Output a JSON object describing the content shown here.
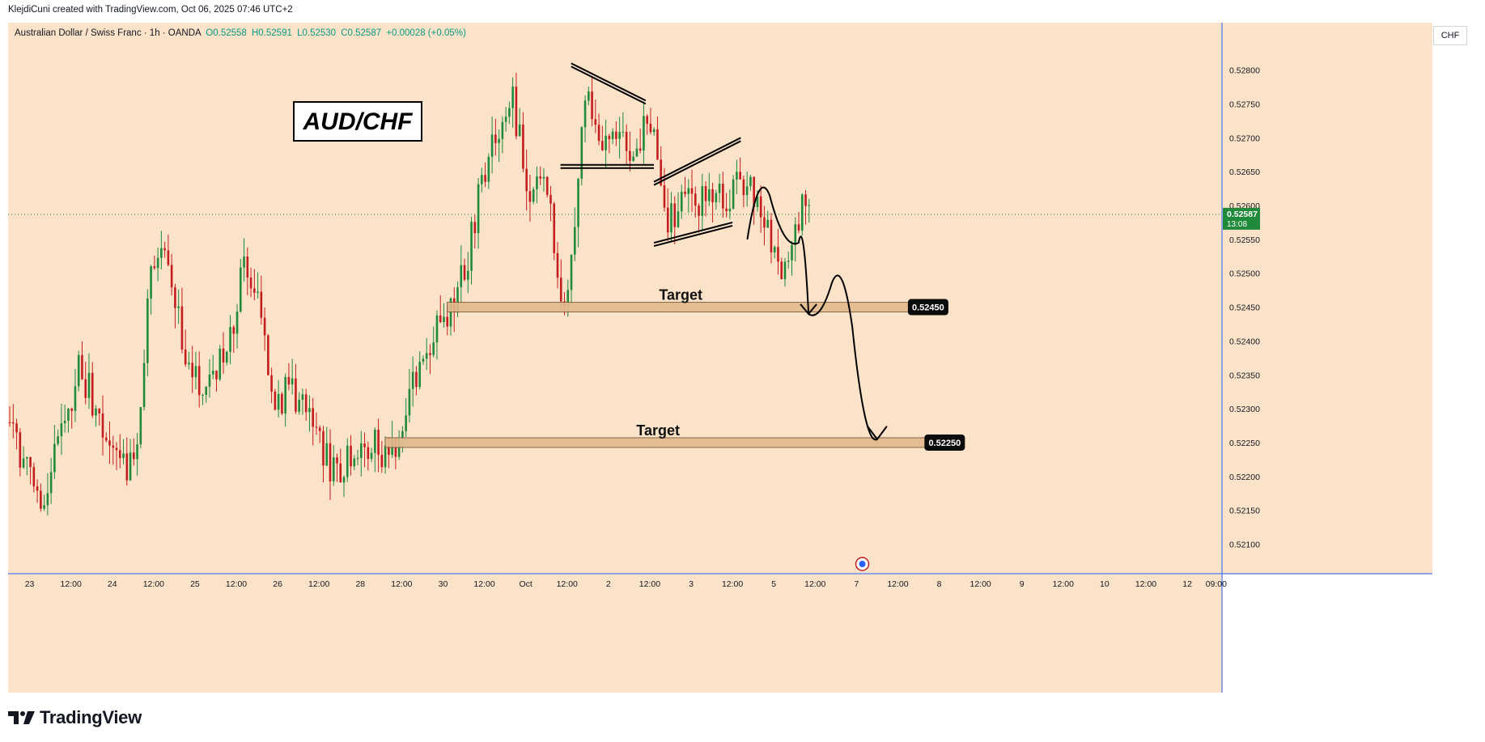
{
  "header": {
    "credit": "KlejdiCuni created with TradingView.com, Oct 06, 2025 07:46 UTC+2"
  },
  "symbol": {
    "description": "Australian Dollar / Swiss Franc · 1h · OANDA",
    "open": "O0.52558",
    "high": "H0.52591",
    "low": "L0.52530",
    "close": "C0.52587",
    "change": "+0.00028 (+0.05%)"
  },
  "currency": "CHF",
  "brand": {
    "name": "TradingView"
  },
  "colors": {
    "background": "#fbe3c9",
    "up": "#1e8a3a",
    "down": "#c51d1d",
    "axis": "#2962ff",
    "target_fill": "#e2b98e"
  },
  "chart_data": {
    "type": "candlestick",
    "title": "AUD/CHF",
    "y_range": [
      0.5206,
      0.5287
    ],
    "y_ticks": [
      "0.52100",
      "0.52150",
      "0.52200",
      "0.52250",
      "0.52300",
      "0.52350",
      "0.52400",
      "0.52450",
      "0.52500",
      "0.52550",
      "0.52600",
      "0.52650",
      "0.52700",
      "0.52750",
      "0.52800"
    ],
    "x_ticks": [
      {
        "label": "23",
        "x": 0.0
      },
      {
        "label": "12:00",
        "x": 0.5
      },
      {
        "label": "24",
        "x": 1.0
      },
      {
        "label": "12:00",
        "x": 1.5
      },
      {
        "label": "25",
        "x": 2.0
      },
      {
        "label": "12:00",
        "x": 2.5
      },
      {
        "label": "26",
        "x": 3.0
      },
      {
        "label": "12:00",
        "x": 3.5
      },
      {
        "label": "28",
        "x": 4.0
      },
      {
        "label": "12:00",
        "x": 4.5
      },
      {
        "label": "30",
        "x": 5.0
      },
      {
        "label": "12:00",
        "x": 5.5
      },
      {
        "label": "Oct",
        "x": 6.0
      },
      {
        "label": "12:00",
        "x": 6.5
      },
      {
        "label": "2",
        "x": 7.0
      },
      {
        "label": "12:00",
        "x": 7.5
      },
      {
        "label": "3",
        "x": 8.0
      },
      {
        "label": "12:00",
        "x": 8.5
      },
      {
        "label": "5",
        "x": 9.0
      },
      {
        "label": "12:00",
        "x": 9.5
      },
      {
        "label": "7",
        "x": 10.0
      },
      {
        "label": "12:00",
        "x": 10.5
      },
      {
        "label": "8",
        "x": 11.0
      },
      {
        "label": "12:00",
        "x": 11.5
      },
      {
        "label": "9",
        "x": 12.0
      },
      {
        "label": "12:00",
        "x": 12.5
      },
      {
        "label": "10",
        "x": 13.0
      },
      {
        "label": "12:00",
        "x": 13.5
      },
      {
        "label": "12",
        "x": 14.0
      },
      {
        "label": "09:00",
        "x": 14.35
      }
    ],
    "x_range": [
      -0.26,
      14.42
    ],
    "last_price": {
      "value": 0.52587,
      "label": "0.52587",
      "countdown": "13:08"
    },
    "targets": [
      {
        "label": "Target",
        "price": 0.5245,
        "price_label": "0.52450",
        "x_start": 5.05,
        "x_end": 10.7
      },
      {
        "label": "Target",
        "price": 0.5225,
        "price_label": "0.52250",
        "x_start": 4.3,
        "x_end": 10.9
      }
    ],
    "anchors": [
      {
        "x": -0.26,
        "y": 0.5228
      },
      {
        "x": 0.1,
        "y": 0.5216
      },
      {
        "x": 0.35,
        "y": 0.5224
      },
      {
        "x": 0.6,
        "y": 0.5236
      },
      {
        "x": 0.9,
        "y": 0.5228
      },
      {
        "x": 1.1,
        "y": 0.522
      },
      {
        "x": 1.3,
        "y": 0.5225
      },
      {
        "x": 1.45,
        "y": 0.5249
      },
      {
        "x": 1.65,
        "y": 0.5252
      },
      {
        "x": 1.85,
        "y": 0.524
      },
      {
        "x": 2.05,
        "y": 0.5232
      },
      {
        "x": 2.25,
        "y": 0.5236
      },
      {
        "x": 2.45,
        "y": 0.5242
      },
      {
        "x": 2.6,
        "y": 0.5251
      },
      {
        "x": 2.8,
        "y": 0.5244
      },
      {
        "x": 2.95,
        "y": 0.5231
      },
      {
        "x": 3.15,
        "y": 0.5233
      },
      {
        "x": 3.3,
        "y": 0.523
      },
      {
        "x": 3.45,
        "y": 0.5228
      },
      {
        "x": 3.65,
        "y": 0.522
      },
      {
        "x": 3.85,
        "y": 0.5223
      },
      {
        "x": 4.0,
        "y": 0.5226
      },
      {
        "x": 4.2,
        "y": 0.5224
      },
      {
        "x": 4.35,
        "y": 0.5222
      },
      {
        "x": 4.55,
        "y": 0.5231
      },
      {
        "x": 4.75,
        "y": 0.5235
      },
      {
        "x": 4.9,
        "y": 0.5241
      },
      {
        "x": 5.1,
        "y": 0.5244
      },
      {
        "x": 5.3,
        "y": 0.5253
      },
      {
        "x": 5.45,
        "y": 0.5262
      },
      {
        "x": 5.55,
        "y": 0.5268
      },
      {
        "x": 5.7,
        "y": 0.5273
      },
      {
        "x": 5.85,
        "y": 0.5275
      },
      {
        "x": 5.95,
        "y": 0.5268
      },
      {
        "x": 6.05,
        "y": 0.5262
      },
      {
        "x": 6.25,
        "y": 0.5264
      },
      {
        "x": 6.35,
        "y": 0.5252
      },
      {
        "x": 6.45,
        "y": 0.5247
      },
      {
        "x": 6.55,
        "y": 0.5252
      },
      {
        "x": 6.65,
        "y": 0.5266
      },
      {
        "x": 6.75,
        "y": 0.5277
      },
      {
        "x": 6.9,
        "y": 0.527
      },
      {
        "x": 7.05,
        "y": 0.5273
      },
      {
        "x": 7.2,
        "y": 0.527
      },
      {
        "x": 7.35,
        "y": 0.5268
      },
      {
        "x": 7.5,
        "y": 0.5273
      },
      {
        "x": 7.6,
        "y": 0.5269
      },
      {
        "x": 7.7,
        "y": 0.5258
      },
      {
        "x": 7.85,
        "y": 0.526
      },
      {
        "x": 8.0,
        "y": 0.5262
      },
      {
        "x": 8.15,
        "y": 0.526
      },
      {
        "x": 8.3,
        "y": 0.5262
      },
      {
        "x": 8.45,
        "y": 0.5258
      },
      {
        "x": 8.55,
        "y": 0.5264
      },
      {
        "x": 8.7,
        "y": 0.5262
      },
      {
        "x": 8.85,
        "y": 0.5258
      },
      {
        "x": 9.0,
        "y": 0.5253
      },
      {
        "x": 9.1,
        "y": 0.525
      },
      {
        "x": 9.2,
        "y": 0.5256
      },
      {
        "x": 9.35,
        "y": 0.526
      },
      {
        "x": 9.45,
        "y": 0.52587
      }
    ],
    "annotations": {
      "descending_wedge": {
        "upper": [
          [
            6.55,
            0.5281
          ],
          [
            7.45,
            0.52755
          ]
        ],
        "lower": [
          [
            6.42,
            0.5266
          ],
          [
            7.55,
            0.5266
          ]
        ]
      },
      "channel": {
        "upper": [
          [
            7.55,
            0.52635
          ],
          [
            8.6,
            0.527
          ]
        ],
        "lower": [
          [
            7.55,
            0.52545
          ],
          [
            8.5,
            0.52575
          ]
        ]
      },
      "projection": [
        [
          8.68,
          0.5255
        ],
        [
          8.95,
          0.52615
        ],
        [
          9.3,
          0.52545
        ],
        [
          9.42,
          0.5244
        ],
        [
          9.7,
          0.52485
        ],
        [
          9.95,
          0.5242
        ],
        [
          10.25,
          0.52255
        ]
      ]
    }
  }
}
